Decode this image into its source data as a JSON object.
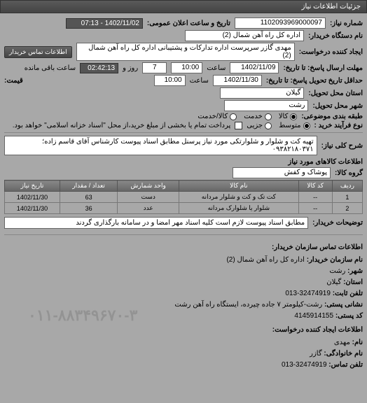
{
  "header": "جزئیات اطلاعات نیاز",
  "request_number": {
    "label": "شماره نیاز:",
    "value": "1102093969000097"
  },
  "announce_date": {
    "label": "تاریخ و ساعت اعلان عمومی:",
    "value": "1402/11/02 - 07:13"
  },
  "buyer_org": {
    "label": "نام دستگاه خریدار:",
    "value": "اداره کل راه آهن شمال (2)"
  },
  "requester": {
    "label": "ایجاد کننده درخواست:",
    "value": "مهدی گازر سرپرست اداره تدارکات و پشتیبانی اداره کل راه آهن شمال (2)"
  },
  "contact_btn": "اطلاعات تماس خریدار",
  "deadline_send": {
    "label": "مهلت ارسال پاسخ: تا تاریخ:",
    "date": "1402/11/09",
    "time_label": "ساعت",
    "time": "10:00",
    "days": "7",
    "day_label": "روز و",
    "remain": "02:42:13",
    "remain_label": "ساعت باقی مانده"
  },
  "deadline_delivery": {
    "label": "حداقل تاریخ تحویل پاسخ: تا تاریخ:",
    "date": "1402/11/30",
    "time_label": "ساعت",
    "time": "10:00",
    "price_label": "قیمت:"
  },
  "province": {
    "label": "استان محل تحویل:",
    "value": "گیلان"
  },
  "city": {
    "label": "شهر محل تحویل:",
    "value": "رشت"
  },
  "package": {
    "label": "طبقه بندی موضوعی:",
    "options": [
      {
        "label": "کالا",
        "checked": true
      },
      {
        "label": "خدمت",
        "checked": false
      },
      {
        "label": "کالا/خدمت",
        "checked": false
      }
    ]
  },
  "process": {
    "label": "نوع فرآیند خرید :",
    "options": [
      {
        "label": "متوسط",
        "checked": true
      },
      {
        "label": "جزیی",
        "checked": false
      }
    ],
    "checkbox_label": "پرداخت تمام یا بخشی از مبلغ خرید،از محل \"اسناد خزانه اسلامی\" خواهد بود."
  },
  "subject": {
    "label": "شرح کلی نیاز:",
    "value": "تهیه کت و شلوار و شلوارتکی مورد نیاز پرسنل مطابق اسناد پیوست کارشناس آقای قاسم زاده؛ ۰۹۳۸۲۱۸۰۳۷۱"
  },
  "goods_header": "اطلاعات کالاهای مورد نیاز",
  "group": {
    "label": "گروه کالا:",
    "value": "پوشاک و کفش"
  },
  "table": {
    "columns": [
      "ردیف",
      "کد کالا",
      "نام کالا",
      "واحد شمارش",
      "تعداد / مقدار",
      "تاریخ نیاز"
    ],
    "rows": [
      [
        "1",
        "--",
        "کت تک و کت و شلوار مردانه",
        "دست",
        "63",
        "1402/11/30"
      ],
      [
        "2",
        "--",
        "شلوار یا شلوارک مردانه",
        "عدد",
        "36",
        "1402/11/30"
      ]
    ]
  },
  "buyer_note": {
    "label": "توضیحات خریدار:",
    "value": "مطابق اسناد پیوست لازم است کلیه اسناد مهر امضا و در سامانه بارگذاری گردند"
  },
  "contact_header": "اطلاعات تماس سازمان خریدار:",
  "contact": {
    "org": {
      "label": "نام سازمان خریدار:",
      "value": "اداره کل راه آهن شمال (2)"
    },
    "city": {
      "label": "شهر:",
      "value": "رشت"
    },
    "province": {
      "label": "استان:",
      "value": "گیلان"
    },
    "phone": {
      "label": "تلفن ثابت:",
      "value": "32474919-013"
    },
    "address": {
      "label": "نشانی پستی:",
      "value": "رشت-کیلومتر ۷ جاده چیرده، ایستگاه راه آهن رشت"
    },
    "postal": {
      "label": "کد پستی:",
      "value": "4145914155"
    }
  },
  "requester_header": "اطلاعات ایجاد کننده درخواست:",
  "requester_info": {
    "name": {
      "label": "نام:",
      "value": "مهدی"
    },
    "family": {
      "label": "نام خانوادگی:",
      "value": "گازر"
    },
    "phone": {
      "label": "تلفن تماس:",
      "value": "32474919-013"
    }
  },
  "watermark": "۰۱۱-۸۸۳۴۹۶۷۰-۳",
  "colors": {
    "bg": "#a8a8a8",
    "header_bg": "#4a4a4a",
    "field_bg": "#ffffff",
    "dark_field": "#555555",
    "border": "#666666"
  }
}
